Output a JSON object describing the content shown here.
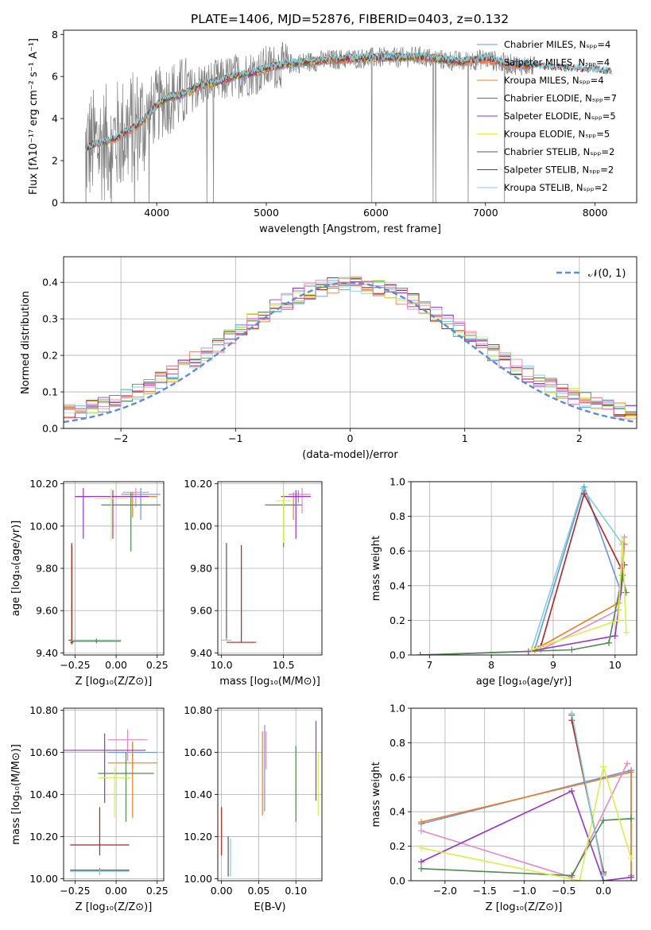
{
  "figure": {
    "title": "PLATE=1406, MJD=52876, FIBERID=0403, z=0.132"
  },
  "colors": {
    "chabrier_miles": "#6495ed",
    "salpeter_miles": "#f08060",
    "kroupa_miles": "#f07f20",
    "chabrier_elodie": "#4f8a4f",
    "salpeter_elodie": "#9932cc",
    "kroupa_elodie": "#d8f048",
    "chabrier_stelib": "#555555",
    "salpeter_stelib": "#b22222",
    "kroupa_stelib": "#7fd0d8",
    "pink": "#e887c0",
    "data_gray": "#808080",
    "normal_curve": "#5a8ed6"
  },
  "legend_spectrum": [
    "Chabrier MILES, Nₛₚₚ=4",
    "Salpeter MILES, Nₛₚₚ=4",
    "Kroupa MILES, Nₛₚₚ=4",
    "Chabrier ELODIE, Nₛₚₚ=7",
    "Salpeter ELODIE, Nₛₚₚ=5",
    "Kroupa ELODIE, Nₛₚₚ=5",
    "Chabrier STELIB, Nₛₚₚ=2",
    "Salpeter STELIB, Nₛₚₚ=2",
    "Kroupa STELIB, Nₛₚₚ=2"
  ],
  "legend_residual": [
    "𝒩(0, 1)"
  ],
  "chart_data": [
    {
      "id": "spectrum",
      "type": "line",
      "xlabel": "wavelength [Angstrom, rest frame]",
      "ylabel": "Flux [fλ10⁻¹⁷ erg cm⁻² s⁻¹ A⁻¹]",
      "xlim": [
        3150,
        8380
      ],
      "ylim": [
        0,
        8.2
      ],
      "xticks": [
        4000,
        5000,
        6000,
        7000,
        8000
      ],
      "yticks": [
        0,
        2,
        4,
        6,
        8
      ],
      "grid": false,
      "legend": "top-right",
      "continuum_x": [
        3350,
        3400,
        3500,
        3600,
        3700,
        3800,
        3900,
        4000,
        4100,
        4200,
        4300,
        4400,
        4500,
        4600,
        4700,
        4800,
        4900,
        5000,
        5200,
        5400,
        5600,
        5800,
        6000,
        6200,
        6400,
        6600,
        6800,
        7000,
        7200,
        7400,
        7600,
        7800,
        8000,
        8150
      ],
      "continuum_y": [
        2.5,
        2.7,
        2.8,
        3.0,
        3.3,
        3.6,
        4.0,
        4.6,
        5.0,
        5.1,
        5.3,
        5.6,
        5.7,
        5.8,
        6.0,
        6.1,
        6.2,
        6.4,
        6.6,
        6.7,
        6.8,
        6.85,
        6.9,
        6.9,
        6.95,
        6.8,
        6.7,
        6.85,
        6.6,
        6.5,
        6.4,
        6.35,
        6.3,
        6.2
      ]
    },
    {
      "id": "residuals",
      "type": "line",
      "xlabel": "(data-model)/error",
      "ylabel": "Normed distribution",
      "xlim": [
        -2.5,
        2.5
      ],
      "ylim": [
        0,
        0.47
      ],
      "xticks": [
        -2,
        -1,
        0,
        1,
        2
      ],
      "yticks": [
        0.0,
        0.1,
        0.2,
        0.3,
        0.4
      ],
      "grid": true,
      "legend": "top-right",
      "normal_mean": 0,
      "normal_sigma": 1
    },
    {
      "id": "age_vs_z",
      "type": "scatter",
      "xlabel": "Z [log₁₀(Z/Z⊙)]",
      "ylabel": "age  [log₁₀(age/yr)]",
      "xlim": [
        -0.32,
        0.29
      ],
      "ylim": [
        9.39,
        10.21
      ],
      "xticks": [
        -0.25,
        0.0,
        0.25
      ],
      "yticks": [
        9.4,
        9.6,
        9.8,
        10.0,
        10.2
      ],
      "grid": true,
      "points": [
        {
          "x": 0.15,
          "y": 10.15,
          "xerr": 0.12,
          "yerr_lo": 0.12,
          "yerr_hi": 0.03,
          "c": "chabrier_miles"
        },
        {
          "x": 0.1,
          "y": 10.14,
          "xerr": 0.15,
          "yerr_lo": 0.1,
          "yerr_hi": 0.02,
          "c": "kroupa_miles"
        },
        {
          "x": 0.12,
          "y": 10.16,
          "xerr": 0.08,
          "yerr_lo": 0.07,
          "yerr_hi": 0.02,
          "c": "pink"
        },
        {
          "x": -0.02,
          "y": 10.14,
          "xerr": 0.22,
          "yerr_lo": 0.2,
          "yerr_hi": 0.03,
          "c": "salpeter_elodie"
        },
        {
          "x": 0.09,
          "y": 10.1,
          "xerr": 0.18,
          "yerr_lo": 0.22,
          "yerr_hi": 0.06,
          "c": "chabrier_elodie"
        },
        {
          "x": -0.03,
          "y": 10.13,
          "xerr": 0.1,
          "yerr_lo": 0.2,
          "yerr_hi": 0.05,
          "c": "kroupa_elodie"
        },
        {
          "x": -0.2,
          "y": 10.14,
          "xerr": 0.05,
          "yerr_lo": 0.2,
          "yerr_hi": 0.04,
          "c": "salpeter_elodie"
        },
        {
          "x": -0.27,
          "y": 9.46,
          "xerr": 0.02,
          "yerr_lo": 0.01,
          "yerr_hi": 0.46,
          "c": "chabrier_stelib"
        },
        {
          "x": -0.27,
          "y": 9.45,
          "xerr": 0.01,
          "yerr_lo": 0.01,
          "yerr_hi": 0.46,
          "c": "salpeter_stelib"
        },
        {
          "x": -0.12,
          "y": 9.46,
          "xerr": 0.15,
          "yerr_lo": 0.01,
          "yerr_hi": 0.01,
          "c": "kroupa_stelib"
        },
        {
          "x": -0.12,
          "y": 9.455,
          "xerr": 0.15,
          "yerr_lo": 0.01,
          "yerr_hi": 0.01,
          "c": "chabrier_elodie"
        }
      ]
    },
    {
      "id": "age_vs_mass",
      "type": "scatter",
      "xlabel": "mass [log₁₀(M/M⊙)]",
      "ylabel": "",
      "xlim": [
        9.97,
        10.81
      ],
      "ylim": [
        9.39,
        10.21
      ],
      "xticks": [
        10.0,
        10.5
      ],
      "yticks": [
        9.4,
        9.6,
        9.8,
        10.0,
        10.2
      ],
      "grid": true,
      "points": [
        {
          "x": 10.62,
          "y": 10.15,
          "xerr": 0.08,
          "yerr_lo": 0.04,
          "yerr_hi": 0.02,
          "c": "chabrier_miles"
        },
        {
          "x": 10.58,
          "y": 10.14,
          "xerr": 0.06,
          "yerr_lo": 0.11,
          "yerr_hi": 0.02,
          "c": "kroupa_miles"
        },
        {
          "x": 10.65,
          "y": 10.15,
          "xerr": 0.07,
          "yerr_lo": 0.09,
          "yerr_hi": 0.03,
          "c": "pink"
        },
        {
          "x": 10.6,
          "y": 10.14,
          "xerr": 0.12,
          "yerr_lo": 0.2,
          "yerr_hi": 0.03,
          "c": "salpeter_elodie"
        },
        {
          "x": 10.5,
          "y": 10.1,
          "xerr": 0.15,
          "yerr_lo": 0.2,
          "yerr_hi": 0.05,
          "c": "chabrier_elodie"
        },
        {
          "x": 10.5,
          "y": 10.12,
          "xerr": 0.06,
          "yerr_lo": 0.2,
          "yerr_hi": 0.04,
          "c": "kroupa_elodie"
        },
        {
          "x": 10.04,
          "y": 9.46,
          "xerr": 0.01,
          "yerr_lo": 0.0,
          "yerr_hi": 0.46,
          "c": "chabrier_stelib"
        },
        {
          "x": 10.16,
          "y": 9.45,
          "xerr": 0.12,
          "yerr_lo": 0.0,
          "yerr_hi": 0.46,
          "c": "salpeter_stelib"
        },
        {
          "x": 10.04,
          "y": 9.46,
          "xerr": 0.04,
          "yerr_lo": 0.0,
          "yerr_hi": 0.01,
          "c": "kroupa_stelib"
        }
      ]
    },
    {
      "id": "weight_vs_age",
      "type": "line",
      "xlabel": "age  [log₁₀(age/yr)]",
      "ylabel": "mass weight",
      "xlim": [
        6.7,
        10.35
      ],
      "ylim": [
        0,
        1.0
      ],
      "xticks": [
        7,
        8,
        9,
        10
      ],
      "yticks": [
        0.0,
        0.2,
        0.4,
        0.6,
        0.8,
        1.0
      ],
      "grid": true,
      "series": [
        {
          "c": "chabrier_miles",
          "x": [
            8.7,
            9.5,
            10.1,
            10.15
          ],
          "y": [
            0.03,
            0.97,
            0.36,
            0.64
          ]
        },
        {
          "c": "kroupa_stelib",
          "x": [
            8.65,
            9.48,
            10.12
          ],
          "y": [
            0.03,
            0.96,
            0.64
          ]
        },
        {
          "c": "salpeter_stelib",
          "x": [
            8.8,
            9.5,
            10.1
          ],
          "y": [
            0.05,
            0.93,
            0.5
          ]
        },
        {
          "c": "kroupa_miles",
          "x": [
            8.7,
            10.05,
            10.15
          ],
          "y": [
            0.03,
            0.3,
            0.64
          ]
        },
        {
          "c": "pink",
          "x": [
            8.8,
            10.05,
            10.15
          ],
          "y": [
            0.03,
            0.26,
            0.68
          ]
        },
        {
          "c": "salpeter_elodie",
          "x": [
            6.85,
            8.6,
            10.0,
            10.15
          ],
          "y": [
            0.0,
            0.02,
            0.11,
            0.52
          ]
        },
        {
          "c": "chabrier_elodie",
          "x": [
            6.85,
            9.3,
            9.9,
            10.12,
            10.18
          ],
          "y": [
            0.0,
            0.03,
            0.07,
            0.46,
            0.36
          ]
        },
        {
          "c": "kroupa_elodie",
          "x": [
            8.65,
            10.05,
            10.12,
            10.18
          ],
          "y": [
            0.03,
            0.2,
            0.66,
            0.13
          ]
        }
      ]
    },
    {
      "id": "mass_vs_z",
      "type": "scatter",
      "xlabel": "Z [log₁₀(Z/Z⊙)]",
      "ylabel": "mass [log₁₀(M/M⊙)]",
      "xlim": [
        -0.32,
        0.29
      ],
      "ylim": [
        9.99,
        10.81
      ],
      "xticks": [
        -0.25,
        0.0,
        0.25
      ],
      "yticks": [
        10.0,
        10.2,
        10.4,
        10.6,
        10.8
      ],
      "grid": true,
      "points": [
        {
          "x": 0.1,
          "y": 10.6,
          "xerr": 0.15,
          "yerr_lo": 0.08,
          "yerr_hi": 0.05,
          "c": "chabrier_miles"
        },
        {
          "x": 0.1,
          "y": 10.55,
          "xerr": 0.15,
          "yerr_lo": 0.26,
          "yerr_hi": 0.1,
          "c": "kroupa_miles"
        },
        {
          "x": 0.07,
          "y": 10.66,
          "xerr": 0.12,
          "yerr_lo": 0.1,
          "yerr_hi": 0.05,
          "c": "pink"
        },
        {
          "x": -0.07,
          "y": 10.61,
          "xerr": 0.25,
          "yerr_lo": 0.25,
          "yerr_hi": 0.08,
          "c": "salpeter_elodie"
        },
        {
          "x": 0.06,
          "y": 10.5,
          "xerr": 0.17,
          "yerr_lo": 0.23,
          "yerr_hi": 0.1,
          "c": "chabrier_elodie"
        },
        {
          "x": -0.01,
          "y": 10.48,
          "xerr": 0.1,
          "yerr_lo": 0.19,
          "yerr_hi": 0.05,
          "c": "kroupa_elodie"
        },
        {
          "x": -0.1,
          "y": 10.04,
          "xerr": 0.18,
          "yerr_lo": 0.02,
          "yerr_hi": 0.01,
          "c": "chabrier_stelib"
        },
        {
          "x": -0.1,
          "y": 10.16,
          "xerr": 0.18,
          "yerr_lo": 0.05,
          "yerr_hi": 0.18,
          "c": "salpeter_stelib"
        },
        {
          "x": -0.1,
          "y": 10.035,
          "xerr": 0.18,
          "yerr_lo": 0.02,
          "yerr_hi": 0.01,
          "c": "kroupa_stelib"
        }
      ]
    },
    {
      "id": "mass_vs_ebv",
      "type": "scatter",
      "xlabel": "E(B-V)",
      "ylabel": "",
      "xlim": [
        -0.005,
        0.135
      ],
      "ylim": [
        9.99,
        10.81
      ],
      "xticks": [
        0.0,
        0.05,
        0.1
      ],
      "yticks": [
        10.0,
        10.2,
        10.4,
        10.6,
        10.8
      ],
      "grid": true,
      "points": [
        {
          "x": 0.055,
          "y": 10.5,
          "xerr": 0.0,
          "yerr_lo": 0.2,
          "yerr_hi": 0.2,
          "c": "kroupa_miles"
        },
        {
          "x": 0.058,
          "y": 10.6,
          "xerr": 0.0,
          "yerr_lo": 0.28,
          "yerr_hi": 0.13,
          "c": "chabrier_miles"
        },
        {
          "x": 0.06,
          "y": 10.6,
          "xerr": 0.0,
          "yerr_lo": 0.08,
          "yerr_hi": 0.1,
          "c": "pink"
        },
        {
          "x": 0.1,
          "y": 10.45,
          "xerr": 0.0,
          "yerr_lo": 0.18,
          "yerr_hi": 0.18,
          "c": "chabrier_elodie"
        },
        {
          "x": 0.127,
          "y": 10.57,
          "xerr": 0.0,
          "yerr_lo": 0.2,
          "yerr_hi": 0.18,
          "c": "salpeter_elodie"
        },
        {
          "x": 0.13,
          "y": 10.45,
          "xerr": 0.0,
          "yerr_lo": 0.15,
          "yerr_hi": 0.15,
          "c": "kroupa_elodie"
        },
        {
          "x": 0.0,
          "y": 10.16,
          "xerr": 0.0,
          "yerr_lo": 0.05,
          "yerr_hi": 0.18,
          "c": "salpeter_stelib"
        },
        {
          "x": 0.009,
          "y": 10.1,
          "xerr": 0.0,
          "yerr_lo": 0.09,
          "yerr_hi": 0.1,
          "c": "chabrier_stelib"
        },
        {
          "x": 0.012,
          "y": 10.1,
          "xerr": 0.0,
          "yerr_lo": 0.09,
          "yerr_hi": 0.09,
          "c": "kroupa_stelib"
        }
      ]
    },
    {
      "id": "weight_vs_z",
      "type": "line",
      "xlabel": "Z [log₁₀(Z/Z⊙)]",
      "ylabel": "mass weight",
      "xlim": [
        -2.43,
        0.42
      ],
      "ylim": [
        0,
        1.0
      ],
      "xticks": [
        -2.0,
        -1.5,
        -1.0,
        -0.5,
        0.0
      ],
      "yticks": [
        0.0,
        0.2,
        0.4,
        0.6,
        0.8,
        1.0
      ],
      "grid": true,
      "series": [
        {
          "c": "chabrier_miles",
          "x": [
            -2.3,
            0.35,
            0.35
          ],
          "y": [
            0.33,
            0.64,
            0.03
          ]
        },
        {
          "c": "kroupa_miles",
          "x": [
            -2.3,
            0.35,
            0.35
          ],
          "y": [
            0.34,
            0.63,
            0.02
          ]
        },
        {
          "c": "pink",
          "x": [
            -2.3,
            -0.4,
            0.3
          ],
          "y": [
            0.29,
            0.02,
            0.68
          ]
        },
        {
          "c": "salpeter_elodie",
          "x": [
            -2.3,
            -0.4,
            0.0,
            0.35
          ],
          "y": [
            0.11,
            0.52,
            0.0,
            0.02
          ]
        },
        {
          "c": "chabrier_elodie",
          "x": [
            -2.3,
            -0.4,
            0.0,
            0.35
          ],
          "y": [
            0.07,
            0.03,
            0.35,
            0.36
          ]
        },
        {
          "c": "kroupa_elodie",
          "x": [
            -2.3,
            -0.3,
            0.0,
            0.35
          ],
          "y": [
            0.19,
            0.0,
            0.66,
            0.13
          ]
        },
        {
          "c": "chabrier_stelib",
          "x": [
            -0.4,
            0.0
          ],
          "y": [
            0.96,
            0.04
          ]
        },
        {
          "c": "salpeter_stelib",
          "x": [
            -0.4,
            0.0
          ],
          "y": [
            0.93,
            0.05
          ]
        },
        {
          "c": "kroupa_stelib",
          "x": [
            -0.4,
            0.0
          ],
          "y": [
            0.97,
            0.03
          ]
        }
      ]
    }
  ]
}
